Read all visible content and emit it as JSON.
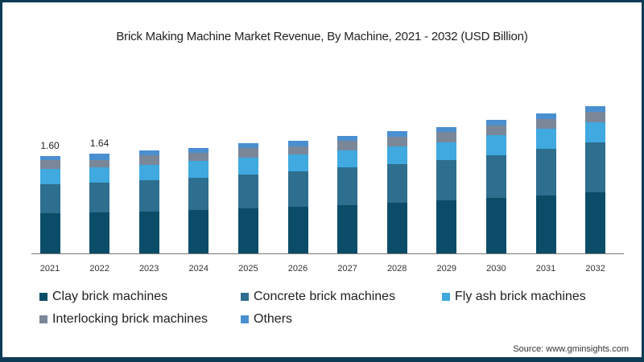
{
  "chart_data": {
    "type": "bar",
    "stacked": true,
    "title": "Brick Making Machine Market Revenue, By Machine, 2021 - 2032 (USD Billion)",
    "xlabel": "",
    "ylabel": "",
    "categories": [
      "2021",
      "2022",
      "2023",
      "2024",
      "2025",
      "2026",
      "2027",
      "2028",
      "2029",
      "2030",
      "2031",
      "2032"
    ],
    "series": [
      {
        "name": "Clay brick machines",
        "color": "#0b4d68",
        "values": [
          0.66,
          0.67,
          0.69,
          0.71,
          0.74,
          0.77,
          0.79,
          0.83,
          0.87,
          0.91,
          0.95,
          1.01
        ]
      },
      {
        "name": "Concrete brick machines",
        "color": "#2e6e8e",
        "values": [
          0.48,
          0.49,
          0.52,
          0.53,
          0.56,
          0.58,
          0.62,
          0.64,
          0.67,
          0.71,
          0.77,
          0.81
        ]
      },
      {
        "name": "Fly ash brick machines",
        "color": "#3fa9e0",
        "values": [
          0.25,
          0.25,
          0.25,
          0.28,
          0.28,
          0.28,
          0.28,
          0.29,
          0.29,
          0.32,
          0.33,
          0.34
        ]
      },
      {
        "name": "Interlocking brick machines",
        "color": "#7a8799",
        "values": [
          0.15,
          0.13,
          0.15,
          0.13,
          0.15,
          0.13,
          0.16,
          0.16,
          0.17,
          0.17,
          0.16,
          0.17
        ]
      },
      {
        "name": "Others",
        "color": "#4a8fd0",
        "values": [
          0.06,
          0.1,
          0.08,
          0.08,
          0.08,
          0.09,
          0.08,
          0.09,
          0.08,
          0.08,
          0.09,
          0.09
        ]
      }
    ],
    "totals": [
      1.6,
      1.64,
      1.69,
      1.73,
      1.81,
      1.85,
      1.93,
      2.01,
      2.08,
      2.19,
      2.3,
      2.42
    ],
    "data_labels": {
      "2021": "1.60",
      "2022": "1.64"
    },
    "grid": false,
    "legend_position": "bottom"
  },
  "legend": [
    {
      "label": "Clay brick machines",
      "color": "#0b4d68"
    },
    {
      "label": "Concrete brick machines",
      "color": "#2e6e8e"
    },
    {
      "label": "Fly ash brick machines",
      "color": "#3fa9e0"
    },
    {
      "label": "Interlocking brick machines",
      "color": "#7a8799"
    },
    {
      "label": "Others",
      "color": "#4a8fd0"
    }
  ],
  "labels": {
    "v2021": "1.60",
    "v2022": "1.64"
  },
  "source": "Source: www.gminsights.com"
}
